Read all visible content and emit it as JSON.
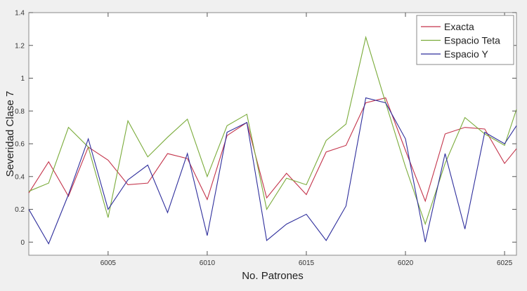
{
  "chart_data": {
    "type": "line",
    "title": "",
    "xlabel": "No. Patrones",
    "ylabel": "Severidad Clase 7",
    "xlim": [
      6001,
      6025.6
    ],
    "ylim": [
      -0.08,
      1.4
    ],
    "x_ticks": [
      6005,
      6010,
      6015,
      6020,
      6025
    ],
    "y_ticks": [
      0,
      0.2,
      0.4,
      0.6,
      0.8,
      1,
      1.2,
      1.4
    ],
    "y_tick_labels": [
      "0",
      "0.2",
      "0.4",
      "0.6",
      "0.8",
      "1",
      "1.2",
      "1.4"
    ],
    "grid": false,
    "legend_position": "top-right",
    "x": [
      6001,
      6002,
      6003,
      6004,
      6005,
      6006,
      6007,
      6008,
      6009,
      6010,
      6011,
      6012,
      6013,
      6014,
      6015,
      6016,
      6017,
      6018,
      6019,
      6020,
      6021,
      6022,
      6023,
      6024,
      6025,
      6025.6
    ],
    "series": [
      {
        "name": "Exacta",
        "color": "#c3334a",
        "values": [
          0.3,
          0.49,
          0.28,
          0.58,
          0.5,
          0.35,
          0.36,
          0.54,
          0.51,
          0.26,
          0.65,
          0.73,
          0.27,
          0.42,
          0.29,
          0.55,
          0.59,
          0.85,
          0.88,
          0.56,
          0.25,
          0.66,
          0.7,
          0.69,
          0.48,
          0.57
        ]
      },
      {
        "name": "Espacio Teta",
        "color": "#7aab3a",
        "values": [
          0.31,
          0.36,
          0.7,
          0.58,
          0.15,
          0.74,
          0.52,
          0.64,
          0.75,
          0.4,
          0.71,
          0.78,
          0.2,
          0.39,
          0.35,
          0.62,
          0.72,
          1.25,
          0.85,
          0.46,
          0.11,
          0.48,
          0.76,
          0.66,
          0.59,
          0.81
        ]
      },
      {
        "name": "Espacio Y",
        "color": "#2e2e9c",
        "values": [
          0.2,
          -0.01,
          0.29,
          0.63,
          0.2,
          0.38,
          0.47,
          0.18,
          0.54,
          0.04,
          0.67,
          0.73,
          0.01,
          0.11,
          0.17,
          0.01,
          0.22,
          0.88,
          0.85,
          0.63,
          0.0,
          0.54,
          0.08,
          0.67,
          0.6,
          0.71
        ]
      }
    ]
  }
}
